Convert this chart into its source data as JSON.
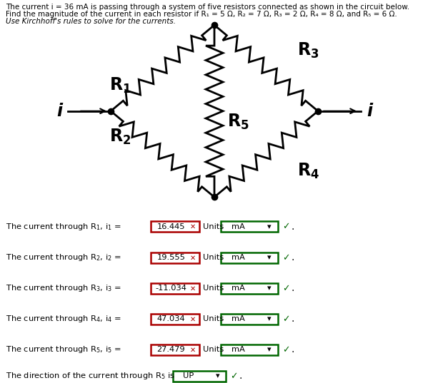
{
  "title_line1": "The current i = 36 mA is passing through a system of five resistors connected as shown in the circuit below.",
  "title_line2": "Find the magnitude of the current in each resistor if R₁ = 5 Ω, R₂ = 7 Ω, R₃ = 2 Ω, R₄ = 8 Ω, and R₅ = 6 Ω.",
  "title_line3": "Use Kirchhoff's rules to solve for the currents.",
  "results": [
    {
      "sub_r": "1",
      "sub_i": "1",
      "value": "16.445",
      "units": "mA"
    },
    {
      "sub_r": "2",
      "sub_i": "2",
      "value": "19.555",
      "units": "mA"
    },
    {
      "sub_r": "3",
      "sub_i": "3",
      "value": "-11.034",
      "units": "mA"
    },
    {
      "sub_r": "4",
      "sub_i": "4",
      "value": "47.034",
      "units": "mA"
    },
    {
      "sub_r": "5",
      "sub_i": "5",
      "value": "27.479",
      "units": "mA"
    }
  ],
  "direction_value": "UP",
  "bg_color": "#ffffff",
  "text_color": "#000000",
  "box_color_red": "#aa0000",
  "box_color_green": "#006600"
}
